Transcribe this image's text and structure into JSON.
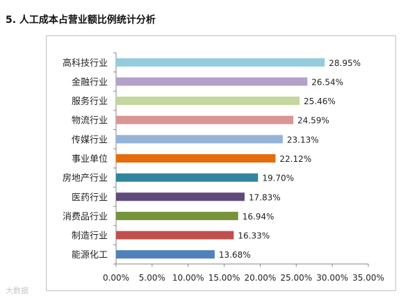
{
  "title": "5.  人工成本占营业额比例统计分析",
  "watermark": "大数据",
  "chart_data": {
    "type": "bar",
    "orientation": "horizontal",
    "categories": [
      "高科技行业",
      "金融行业",
      "服务行业",
      "物流行业",
      "传媒行业",
      "事业单位",
      "房地产行业",
      "医药行业",
      "消费品行业",
      "制造行业",
      "能源化工"
    ],
    "values": [
      28.95,
      26.54,
      25.46,
      24.59,
      23.13,
      22.12,
      19.7,
      17.83,
      16.94,
      16.33,
      13.68
    ],
    "data_labels": [
      "28.95%",
      "26.54%",
      "25.46%",
      "24.59%",
      "23.13%",
      "22.12%",
      "19.70%",
      "17.83%",
      "16.94%",
      "16.33%",
      "13.68%"
    ],
    "colors": [
      "#93CDDD",
      "#B3A2C7",
      "#C3D69B",
      "#D99694",
      "#95B3D7",
      "#E46C0A",
      "#31859C",
      "#604A7B",
      "#77933C",
      "#C0504D",
      "#4F81BD"
    ],
    "xlim": [
      0,
      35
    ],
    "x_ticks": [
      "0.00%",
      "5.00%",
      "10.00%",
      "15.00%",
      "20.00%",
      "25.00%",
      "30.00%",
      "35.00%"
    ],
    "grid": false,
    "legend": "none"
  }
}
